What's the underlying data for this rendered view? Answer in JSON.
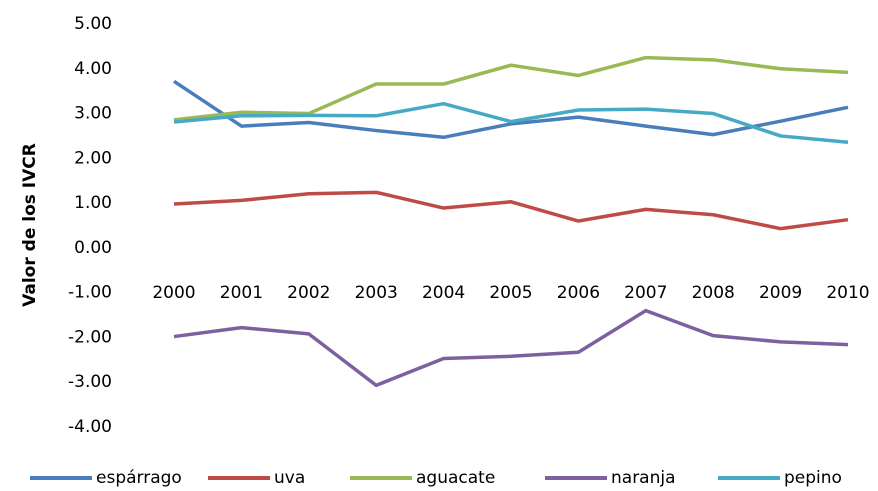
{
  "chart_data": {
    "type": "line",
    "y_label": "Valor de los IVCR",
    "categories": [
      "2000",
      "2001",
      "2002",
      "2003",
      "2004",
      "2005",
      "2006",
      "2007",
      "2008",
      "2009",
      "2010"
    ],
    "ylim": [
      -4,
      5
    ],
    "yticks": [
      {
        "value": -4,
        "label": "-4.00"
      },
      {
        "value": -3,
        "label": "-3.00"
      },
      {
        "value": -2,
        "label": "-2.00"
      },
      {
        "value": -1,
        "label": "-1.00"
      },
      {
        "value": 0,
        "label": "0.00"
      },
      {
        "value": 1,
        "label": "1.00"
      },
      {
        "value": 2,
        "label": "2.00"
      },
      {
        "value": 3,
        "label": "3.00"
      },
      {
        "value": 4,
        "label": "4.00"
      },
      {
        "value": 5,
        "label": "5.00"
      }
    ],
    "series": [
      {
        "name": "espárrago",
        "color": "#4a7ebb",
        "values": [
          3.72,
          2.72,
          2.8,
          2.62,
          2.47,
          2.77,
          2.92,
          2.72,
          2.53,
          2.83,
          3.14
        ]
      },
      {
        "name": "uva",
        "color": "#be4b48",
        "values": [
          0.98,
          1.06,
          1.21,
          1.24,
          0.89,
          1.03,
          0.6,
          0.86,
          0.74,
          0.43,
          0.63
        ]
      },
      {
        "name": "aguacate",
        "color": "#98b954",
        "values": [
          2.86,
          3.03,
          3.0,
          3.66,
          3.66,
          4.08,
          3.85,
          4.25,
          4.2,
          4.0,
          3.92
        ]
      },
      {
        "name": "naranja",
        "color": "#7d60a0",
        "values": [
          -1.98,
          -1.78,
          -1.92,
          -3.07,
          -2.47,
          -2.42,
          -2.33,
          -1.4,
          -1.96,
          -2.1,
          -2.16
        ]
      },
      {
        "name": "pepino",
        "color": "#46aac5",
        "values": [
          2.81,
          2.95,
          2.96,
          2.95,
          3.22,
          2.82,
          3.08,
          3.1,
          3.0,
          2.5,
          2.36
        ]
      }
    ]
  }
}
